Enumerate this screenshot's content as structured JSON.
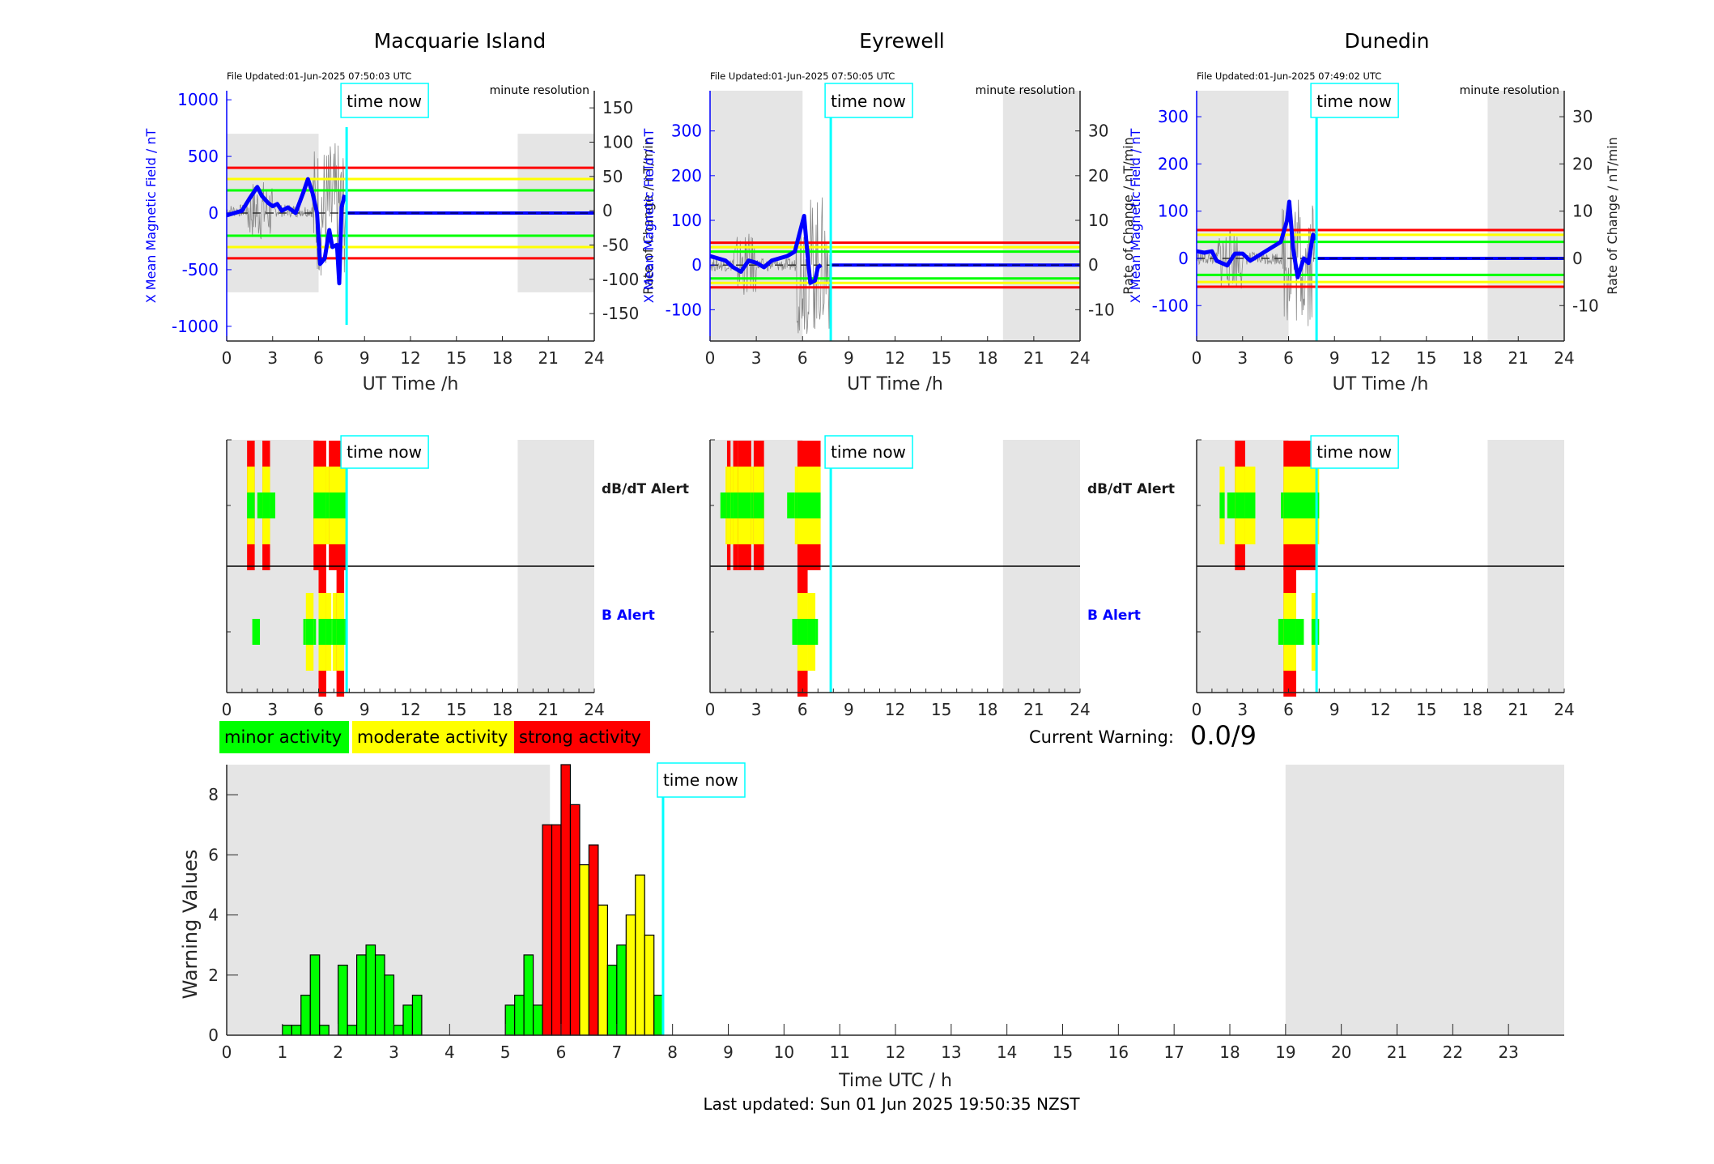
{
  "colors": {
    "minor": "#00ff00",
    "moderate": "#ffff00",
    "strong": "#ff0000",
    "time_now": "#00ffff",
    "night_shade": "#e5e5e5",
    "field_line": "#0000ff",
    "axis_blue": "#0000ff",
    "axis_dark": "#262626"
  },
  "time_now_label": "time now",
  "time_now_hours": 7.83,
  "night_shade_hours": [
    [
      0,
      6
    ],
    [
      19,
      24
    ]
  ],
  "stations": [
    {
      "name": "Macquarie Island",
      "file_updated": "File Updated:01-Jun-2025 07:50:03 UTC",
      "resolution": "minute resolution",
      "left_ylabel": "X Mean Magnetic Field / nT",
      "right_ylabel": "Rate of Change / nT/min",
      "xlabel": "UT Time /h",
      "xticks": [
        "0",
        "3",
        "6",
        "9",
        "12",
        "15",
        "18",
        "21",
        "24"
      ],
      "left_yticks": [
        1000,
        500,
        0,
        -500,
        -1000
      ],
      "left_ylim": [
        -1130,
        1080
      ],
      "right_yticks": [
        150,
        100,
        50,
        0,
        -50,
        -100,
        -150
      ],
      "right_ylim": [
        -190,
        175
      ],
      "shade_ylim": [
        -700,
        700
      ],
      "thresholds": {
        "minor": 200,
        "moderate": 300,
        "strong": 400
      },
      "field_trace": [
        [
          0,
          -20
        ],
        [
          0.5,
          0
        ],
        [
          1,
          20
        ],
        [
          1.5,
          130
        ],
        [
          2,
          230
        ],
        [
          2.3,
          150
        ],
        [
          2.7,
          90
        ],
        [
          3,
          60
        ],
        [
          3.3,
          80
        ],
        [
          3.6,
          20
        ],
        [
          4,
          50
        ],
        [
          4.5,
          0
        ],
        [
          5,
          180
        ],
        [
          5.3,
          300
        ],
        [
          5.6,
          180
        ],
        [
          5.9,
          0
        ],
        [
          6.1,
          -450
        ],
        [
          6.4,
          -400
        ],
        [
          6.7,
          -150
        ],
        [
          6.9,
          -300
        ],
        [
          7.2,
          -280
        ],
        [
          7.35,
          -620
        ],
        [
          7.5,
          50
        ],
        [
          7.7,
          160
        ]
      ],
      "dbdt_alerts": [
        {
          "start": 1.33,
          "end": 1.83,
          "level": 3
        },
        {
          "start": 2.0,
          "end": 2.33,
          "level": 1
        },
        {
          "start": 2.33,
          "end": 2.83,
          "level": 3
        },
        {
          "start": 2.83,
          "end": 3.17,
          "level": 1
        },
        {
          "start": 5.67,
          "end": 6.5,
          "level": 3
        },
        {
          "start": 6.5,
          "end": 6.67,
          "level": 2
        },
        {
          "start": 6.67,
          "end": 7.83,
          "level": 3
        }
      ],
      "b_alerts": [
        {
          "start": 1.67,
          "end": 2.17,
          "level": 1
        },
        {
          "start": 5.0,
          "end": 5.17,
          "level": 1
        },
        {
          "start": 5.17,
          "end": 5.67,
          "level": 2
        },
        {
          "start": 5.67,
          "end": 5.83,
          "level": 1
        },
        {
          "start": 6.0,
          "end": 6.5,
          "level": 3
        },
        {
          "start": 6.5,
          "end": 6.83,
          "level": 2
        },
        {
          "start": 6.83,
          "end": 6.92,
          "level": 1
        },
        {
          "start": 6.92,
          "end": 7.17,
          "level": 2
        },
        {
          "start": 7.17,
          "end": 7.67,
          "level": 3
        },
        {
          "start": 7.67,
          "end": 7.83,
          "level": 1
        }
      ]
    },
    {
      "name": "Eyrewell",
      "file_updated": "File Updated:01-Jun-2025 07:50:05 UTC",
      "resolution": "minute resolution",
      "left_ylabel": "X Mean Magnetic Field / nT",
      "right_ylabel": "Rate of Change / nT/min",
      "xlabel": "UT Time /h",
      "xticks": [
        "0",
        "3",
        "6",
        "9",
        "12",
        "15",
        "18",
        "21",
        "24"
      ],
      "left_yticks": [
        300,
        200,
        100,
        0,
        -100
      ],
      "left_ylim": [
        -170,
        390
      ],
      "right_yticks": [
        30,
        20,
        10,
        0,
        -10
      ],
      "right_ylim": [
        -17,
        39
      ],
      "shade_ylim": null,
      "thresholds": {
        "minor": 30,
        "moderate": 40,
        "strong": 50
      },
      "field_trace": [
        [
          0,
          20
        ],
        [
          0.5,
          15
        ],
        [
          1,
          10
        ],
        [
          1.5,
          -5
        ],
        [
          2,
          -15
        ],
        [
          2.5,
          10
        ],
        [
          3,
          5
        ],
        [
          3.5,
          -5
        ],
        [
          4,
          10
        ],
        [
          4.5,
          15
        ],
        [
          5,
          20
        ],
        [
          5.5,
          30
        ],
        [
          5.8,
          70
        ],
        [
          6.1,
          110
        ],
        [
          6.3,
          30
        ],
        [
          6.5,
          -40
        ],
        [
          6.8,
          -35
        ],
        [
          7.0,
          -5
        ],
        [
          7.2,
          0
        ]
      ],
      "dbdt_alerts": [
        {
          "start": 0.67,
          "end": 1.0,
          "level": 1
        },
        {
          "start": 1.0,
          "end": 1.1,
          "level": 2
        },
        {
          "start": 1.1,
          "end": 1.33,
          "level": 3
        },
        {
          "start": 1.33,
          "end": 1.5,
          "level": 2
        },
        {
          "start": 1.5,
          "end": 1.83,
          "level": 3
        },
        {
          "start": 1.83,
          "end": 2.67,
          "level": 3
        },
        {
          "start": 2.67,
          "end": 2.83,
          "level": 2
        },
        {
          "start": 2.83,
          "end": 3.5,
          "level": 3
        },
        {
          "start": 5.0,
          "end": 5.33,
          "level": 1
        },
        {
          "start": 5.33,
          "end": 5.5,
          "level": 1
        },
        {
          "start": 5.5,
          "end": 5.67,
          "level": 2
        },
        {
          "start": 5.67,
          "end": 7.17,
          "level": 3
        }
      ],
      "b_alerts": [
        {
          "start": 5.33,
          "end": 5.67,
          "level": 1
        },
        {
          "start": 5.67,
          "end": 6.33,
          "level": 3
        },
        {
          "start": 6.33,
          "end": 6.83,
          "level": 2
        },
        {
          "start": 6.83,
          "end": 7.0,
          "level": 1
        }
      ]
    },
    {
      "name": "Dunedin",
      "file_updated": "File Updated:01-Jun-2025 07:49:02 UTC",
      "resolution": "minute resolution",
      "left_ylabel": "X Mean Magnetic Field / nT",
      "right_ylabel": "Rate of Change / nT/min",
      "xlabel": "UT Time /h",
      "xticks": [
        "0",
        "3",
        "6",
        "9",
        "12",
        "15",
        "18",
        "21",
        "24"
      ],
      "left_yticks": [
        300,
        200,
        100,
        0,
        -100
      ],
      "left_ylim": [
        -175,
        355
      ],
      "right_yticks": [
        30,
        20,
        10,
        0,
        -10
      ],
      "right_ylim": [
        -17.5,
        35.5
      ],
      "shade_ylim": null,
      "thresholds": {
        "minor": 35,
        "moderate": 50,
        "strong": 60
      },
      "field_trace": [
        [
          0,
          15
        ],
        [
          0.5,
          12
        ],
        [
          1,
          15
        ],
        [
          1.3,
          -5
        ],
        [
          2,
          -15
        ],
        [
          2.5,
          10
        ],
        [
          3,
          10
        ],
        [
          3.5,
          -5
        ],
        [
          4,
          5
        ],
        [
          4.5,
          15
        ],
        [
          5,
          25
        ],
        [
          5.5,
          35
        ],
        [
          5.9,
          80
        ],
        [
          6.05,
          120
        ],
        [
          6.3,
          20
        ],
        [
          6.6,
          -40
        ],
        [
          7.0,
          0
        ],
        [
          7.3,
          -10
        ],
        [
          7.6,
          50
        ],
        [
          7.8,
          40
        ]
      ],
      "dbdt_alerts": [
        {
          "start": 1.5,
          "end": 1.83,
          "level": 2
        },
        {
          "start": 2.0,
          "end": 2.5,
          "level": 1
        },
        {
          "start": 2.5,
          "end": 3.17,
          "level": 3
        },
        {
          "start": 3.17,
          "end": 3.83,
          "level": 2
        },
        {
          "start": 5.5,
          "end": 5.67,
          "level": 1
        },
        {
          "start": 5.67,
          "end": 7.83,
          "level": 3
        },
        {
          "start": 7.83,
          "end": 8.0,
          "level": 2
        }
      ],
      "b_alerts": [
        {
          "start": 5.33,
          "end": 5.67,
          "level": 1
        },
        {
          "start": 5.67,
          "end": 6.5,
          "level": 3
        },
        {
          "start": 6.5,
          "end": 7.0,
          "level": 1
        },
        {
          "start": 7.5,
          "end": 7.83,
          "level": 2
        },
        {
          "start": 7.83,
          "end": 8.0,
          "level": 1
        }
      ]
    }
  ],
  "alerts_panel": {
    "dbdt_label": "dB/dT Alert",
    "b_label": "B Alert",
    "dbdt_label_color": "#1a1a1a",
    "b_label_color": "#0000ff"
  },
  "legend": [
    {
      "label": "minor activity",
      "level": "minor"
    },
    {
      "label": "moderate activity",
      "level": "moderate"
    },
    {
      "label": "strong activity",
      "level": "strong"
    }
  ],
  "current_warning": {
    "label": "Current Warning:",
    "value": "0.0/9"
  },
  "chart_data": {
    "type": "bar",
    "title": "",
    "xlabel": "Time UTC / h",
    "ylabel": "Warning Values",
    "xlim": [
      0,
      24
    ],
    "ylim": [
      0,
      9
    ],
    "xticks": [
      "0",
      "1",
      "2",
      "3",
      "4",
      "5",
      "6",
      "7",
      "8",
      "9",
      "10",
      "11",
      "12",
      "13",
      "14",
      "15",
      "16",
      "17",
      "18",
      "19",
      "20",
      "21",
      "22",
      "23"
    ],
    "yticks": [
      "0",
      "2",
      "4",
      "6",
      "8"
    ],
    "bin_width_hours": 0.1667,
    "bars": [
      {
        "x": 1.0,
        "value": 0.33,
        "level": "minor"
      },
      {
        "x": 1.167,
        "value": 0.33,
        "level": "minor"
      },
      {
        "x": 1.333,
        "value": 1.33,
        "level": "minor"
      },
      {
        "x": 1.5,
        "value": 2.67,
        "level": "minor"
      },
      {
        "x": 1.667,
        "value": 0.33,
        "level": "minor"
      },
      {
        "x": 2.0,
        "value": 2.33,
        "level": "minor"
      },
      {
        "x": 2.167,
        "value": 0.33,
        "level": "minor"
      },
      {
        "x": 2.333,
        "value": 2.67,
        "level": "minor"
      },
      {
        "x": 2.5,
        "value": 3.0,
        "level": "minor"
      },
      {
        "x": 2.667,
        "value": 2.67,
        "level": "minor"
      },
      {
        "x": 2.833,
        "value": 2.0,
        "level": "minor"
      },
      {
        "x": 3.0,
        "value": 0.33,
        "level": "minor"
      },
      {
        "x": 3.167,
        "value": 1.0,
        "level": "minor"
      },
      {
        "x": 3.333,
        "value": 1.33,
        "level": "minor"
      },
      {
        "x": 5.0,
        "value": 1.0,
        "level": "minor"
      },
      {
        "x": 5.167,
        "value": 1.33,
        "level": "minor"
      },
      {
        "x": 5.333,
        "value": 2.67,
        "level": "minor"
      },
      {
        "x": 5.5,
        "value": 1.0,
        "level": "minor"
      },
      {
        "x": 5.667,
        "value": 7.0,
        "level": "strong"
      },
      {
        "x": 5.833,
        "value": 7.0,
        "level": "strong"
      },
      {
        "x": 6.0,
        "value": 9.0,
        "level": "strong"
      },
      {
        "x": 6.167,
        "value": 7.67,
        "level": "strong"
      },
      {
        "x": 6.333,
        "value": 5.67,
        "level": "moderate"
      },
      {
        "x": 6.5,
        "value": 6.33,
        "level": "strong"
      },
      {
        "x": 6.667,
        "value": 4.33,
        "level": "moderate"
      },
      {
        "x": 6.833,
        "value": 2.33,
        "level": "minor"
      },
      {
        "x": 7.0,
        "value": 3.0,
        "level": "minor"
      },
      {
        "x": 7.167,
        "value": 4.0,
        "level": "moderate"
      },
      {
        "x": 7.333,
        "value": 5.33,
        "level": "moderate"
      },
      {
        "x": 7.5,
        "value": 3.33,
        "level": "moderate"
      },
      {
        "x": 7.667,
        "value": 1.33,
        "level": "minor"
      }
    ],
    "shaded_regions_hours": [
      [
        0,
        5.8
      ],
      [
        19,
        24
      ]
    ],
    "annotations": [
      {
        "text": "time now",
        "x": 7.83
      }
    ],
    "legend": "top-left",
    "grid": false
  },
  "footer": {
    "last_updated": "Last updated: Sun 01 Jun 2025 19:50:35 NZST"
  }
}
